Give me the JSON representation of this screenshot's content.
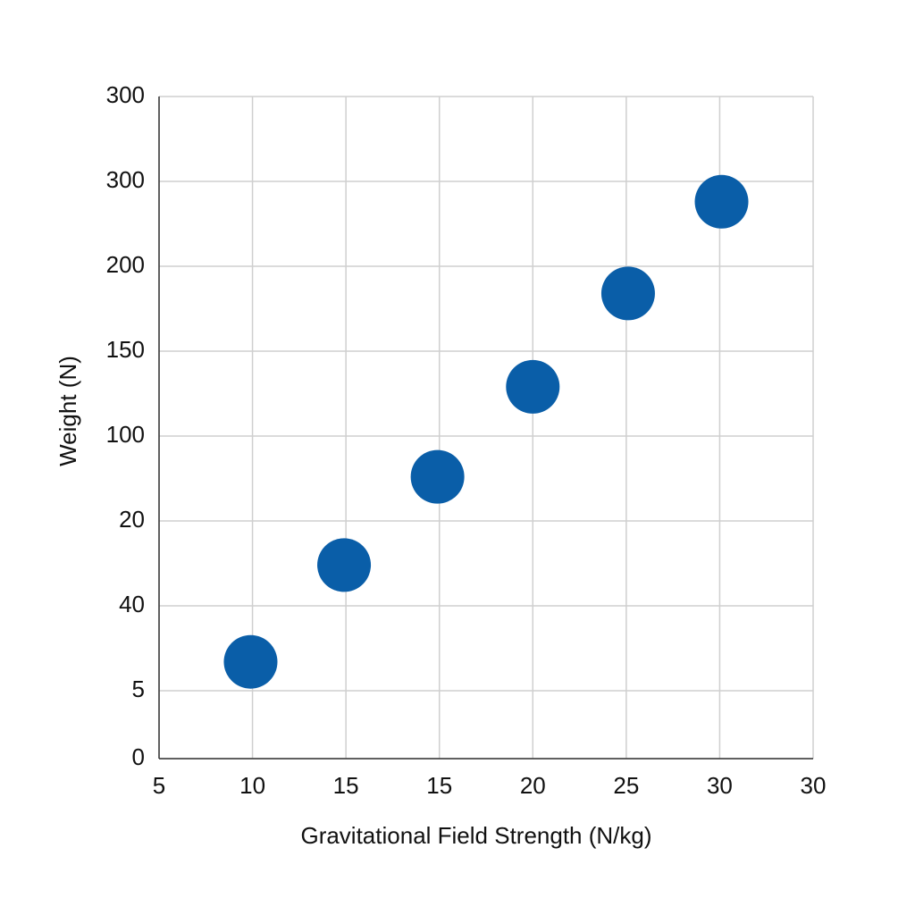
{
  "chart_data": {
    "type": "scatter",
    "x_label": "Gravitational Field Strength (N/kg)",
    "y_label": "Weight (N)",
    "x": [
      9.9,
      14.9,
      19.9,
      25,
      30.1,
      35.1
    ],
    "series": [
      {
        "color": "#0a5ea8",
        "values": [
          57,
          114,
          166,
          219,
          274,
          328
        ]
      }
    ],
    "xlim": [
      5,
      40
    ],
    "xticks": [
      5,
      10,
      15,
      {
        "value": 20,
        "label": "15"
      },
      {
        "value": 25,
        "label": "20"
      },
      {
        "value": 30,
        "label": "25"
      },
      {
        "value": 35,
        "label": "30"
      },
      {
        "value": 40,
        "label": "30"
      }
    ],
    "ylim": [
      0,
      390
    ],
    "yticks": [
      0,
      {
        "value": 40,
        "label": "5"
      },
      {
        "value": 90,
        "label": "40"
      },
      {
        "value": 140,
        "label": "20"
      },
      {
        "value": 190,
        "label": "100"
      },
      {
        "value": 240,
        "label": "150"
      },
      {
        "value": 290,
        "label": "200"
      },
      {
        "value": 340,
        "label": "300"
      },
      {
        "value": 390,
        "label": "300"
      }
    ],
    "grid": true
  }
}
